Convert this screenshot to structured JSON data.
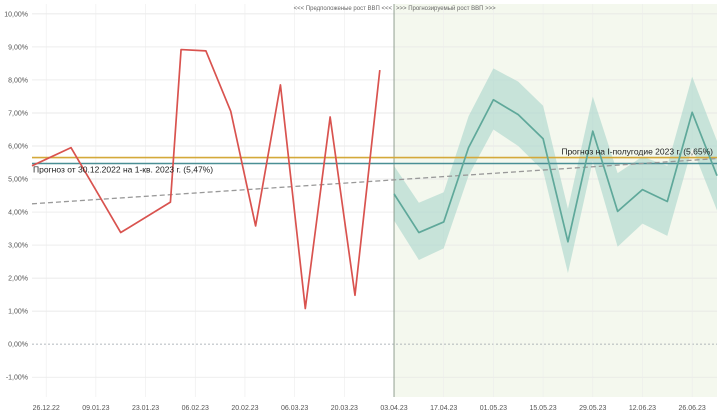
{
  "chart_data": {
    "type": "line",
    "x_dates": [
      "26.12.22",
      "02.01.23",
      "09.01.23",
      "16.01.23",
      "23.01.23",
      "30.01.23",
      "06.02.23",
      "13.02.23",
      "20.02.23",
      "27.02.23",
      "06.03.23",
      "13.03.23",
      "20.03.23",
      "27.03.23",
      "03.04.23",
      "10.04.23",
      "17.04.23",
      "24.04.23",
      "01.05.23",
      "08.05.23",
      "15.05.23",
      "22.05.23",
      "29.05.23",
      "05.06.23",
      "12.06.23",
      "19.06.23",
      "26.06.23",
      "03.07.23"
    ],
    "x_tick_labels": [
      "26.12.22",
      "09.01.23",
      "23.01.23",
      "06.02.23",
      "20.02.23",
      "06.03.23",
      "20.03.23",
      "03.04.23",
      "17.04.23",
      "01.05.23",
      "15.05.23",
      "29.05.23",
      "12.06.23",
      "26.06.23"
    ],
    "y_tick_labels": [
      "-1,00%",
      "0,00%",
      "1,00%",
      "2,00%",
      "3,00%",
      "4,00%",
      "5,00%",
      "6,00%",
      "7,00%",
      "8,00%",
      "9,00%",
      "10,00%"
    ],
    "ylim": [
      -1.6,
      10.3
    ],
    "xlim": [
      "22.12.22",
      "03.07.23"
    ],
    "grid": true,
    "region_labels": {
      "left": "<<< Предположеные рост ВВП <<<",
      "right": ">>> Прогнозируемый рост ВВП >>>"
    },
    "forecast_start": "03.04.23",
    "series": [
      {
        "role": "actual",
        "color": "#d9534f",
        "x": [
          "22.12.22",
          "02.01.23",
          "16.01.23",
          "30.01.23",
          "02.02.23",
          "09.02.23",
          "16.02.23",
          "23.02.23",
          "02.03.23",
          "09.03.23",
          "16.03.23",
          "23.03.23",
          "30.03.23"
        ],
        "values": [
          5.4,
          5.95,
          3.38,
          4.3,
          8.92,
          8.88,
          7.05,
          3.58,
          7.85,
          1.08,
          6.88,
          1.48,
          8.3
        ]
      },
      {
        "role": "forecast",
        "color": "#5fa89a",
        "band_color": "#a9d6cb",
        "x": [
          "03.04.23",
          "10.04.23",
          "17.04.23",
          "24.04.23",
          "01.05.23",
          "08.05.23",
          "15.05.23",
          "22.05.23",
          "29.05.23",
          "05.06.23",
          "12.06.23",
          "19.06.23",
          "26.06.23",
          "03.07.23"
        ],
        "values": [
          4.55,
          3.38,
          3.7,
          5.95,
          7.4,
          6.95,
          6.22,
          3.1,
          6.45,
          4.02,
          4.68,
          4.32,
          7.02,
          5.1
        ],
        "lower": [
          3.75,
          2.55,
          2.9,
          5.1,
          6.5,
          6.0,
          5.25,
          2.15,
          5.55,
          2.95,
          3.65,
          3.28,
          5.95,
          4.05
        ],
        "upper": [
          5.4,
          4.28,
          4.6,
          6.9,
          8.35,
          7.95,
          7.22,
          4.1,
          7.5,
          5.18,
          5.68,
          5.4,
          8.1,
          6.15
        ]
      }
    ],
    "trend": {
      "color": "#999999",
      "style": "dashed",
      "x": [
        "22.12.22",
        "03.07.23"
      ],
      "values": [
        4.25,
        5.62
      ]
    },
    "reference_lines": [
      {
        "value": 5.65,
        "color": "#d4a93a",
        "label": "Прогноз на I-полугодие 2023 г. (5,65%)"
      },
      {
        "value": 5.47,
        "color": "#4a8f95",
        "label": "Прогноз от 30.12.2022 на 1-кв. 2023 г. (5,47%)"
      }
    ]
  }
}
